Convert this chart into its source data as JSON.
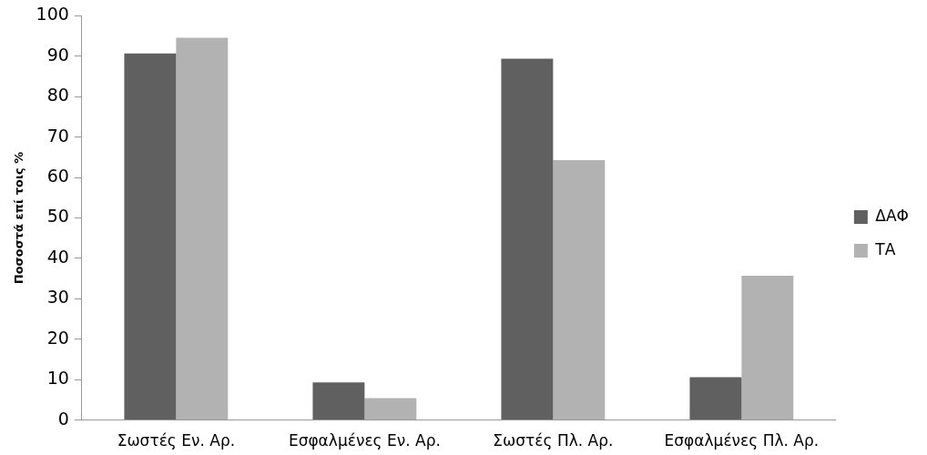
{
  "chart_data": {
    "type": "bar",
    "categories": [
      "Σωστές Εν. Αρ.",
      "Εσφαλμένες Εν. Αρ.",
      "Σωστές Πλ. Αρ.",
      "Εσφαλμένες Πλ. Αρ."
    ],
    "series": [
      {
        "name": "ΔΑΦ",
        "color": "#606060",
        "values": [
          90.7,
          9.3,
          89.4,
          10.6
        ]
      },
      {
        "name": "ΤΑ",
        "color": "#b2b2b2",
        "values": [
          94.6,
          5.4,
          64.3,
          35.7
        ]
      }
    ],
    "ylabel": "Ποσοστά επί τοις %",
    "ylim": [
      0,
      100
    ],
    "yticks": [
      0,
      10,
      20,
      30,
      40,
      50,
      60,
      70,
      80,
      90,
      100
    ],
    "grid": false,
    "legend": "right"
  }
}
